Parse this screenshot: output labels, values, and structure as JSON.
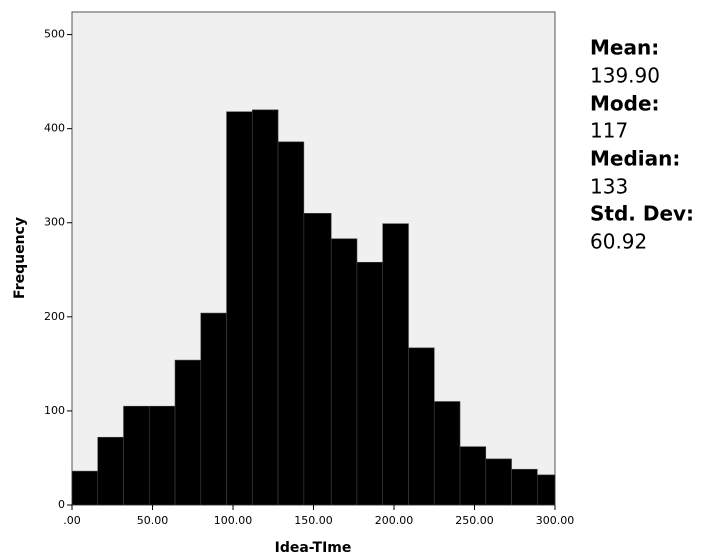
{
  "chart_data": {
    "type": "histogram",
    "x_label": "Idea-TIme",
    "y_label": "Frequency",
    "bins": [
      0,
      16,
      32,
      48,
      64,
      80,
      96,
      112,
      128,
      144,
      161,
      177,
      193,
      209,
      225,
      241,
      257,
      273,
      289,
      300
    ],
    "values": [
      36,
      72,
      105,
      105,
      154,
      204,
      418,
      420,
      386,
      310,
      283,
      258,
      299,
      167,
      110,
      62,
      49,
      38,
      32
    ],
    "color": "#000000",
    "xlim": [
      0,
      300
    ],
    "xticks": [
      {
        "value": 0,
        "label": ".00"
      },
      {
        "value": 50,
        "label": "50.00"
      },
      {
        "value": 100,
        "label": "100.00"
      },
      {
        "value": 150,
        "label": "150.00"
      },
      {
        "value": 200,
        "label": "200.00"
      },
      {
        "value": 250,
        "label": "250.00"
      },
      {
        "value": 300,
        "label": "300.00"
      }
    ],
    "ylim": [
      0,
      524
    ],
    "yticks": [
      0,
      100,
      200,
      300,
      400,
      500
    ]
  },
  "stats": [
    {
      "label": "Mean:",
      "value": "139.90"
    },
    {
      "label": "Mode:",
      "value": "117"
    },
    {
      "label": "Median:",
      "value": "133"
    },
    {
      "label": "Std. Dev:",
      "value": "60.92"
    }
  ]
}
